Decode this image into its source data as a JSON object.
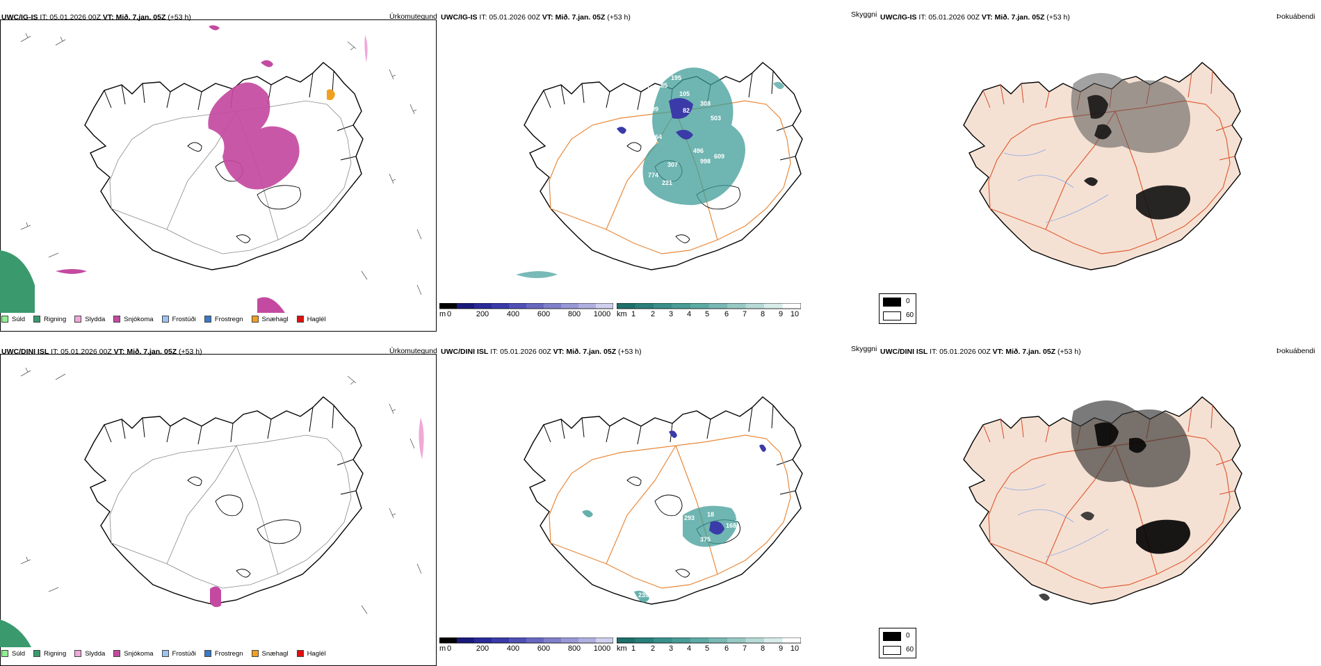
{
  "panels": [
    {
      "id": "p1",
      "title_model": "UWC/IG-IS",
      "title_it": "IT: 05.01.2026 00Z",
      "title_vt": "VT: Mið. 7.jan. 05Z",
      "title_lead": "(+53 h)",
      "type": "Úrkomutegund"
    },
    {
      "id": "p2",
      "title_model": "UWC/IG-IS",
      "title_it": "IT: 05.01.2026 00Z",
      "title_vt": "VT: Mið. 7.jan. 05Z",
      "title_lead": "(+53 h)",
      "type": "Skyggni"
    },
    {
      "id": "p3",
      "title_model": "UWC/IG-IS",
      "title_it": "IT: 05.01.2026 00Z",
      "title_vt": "VT: Mið. 7.jan. 05Z",
      "title_lead": "(+53 h)",
      "type": "Þokuábendi"
    },
    {
      "id": "p4",
      "title_model": "UWC/DINI ISL",
      "title_it": "IT: 05.01.2026 00Z",
      "title_vt": "VT: Mið. 7.jan. 05Z",
      "title_lead": "(+53 h)",
      "type": "Úrkomutegund"
    },
    {
      "id": "p5",
      "title_model": "UWC/DINI ISL",
      "title_it": "IT: 05.01.2026 00Z",
      "title_vt": "VT: Mið. 7.jan. 05Z",
      "title_lead": "(+53 h)",
      "type": "Skyggni"
    },
    {
      "id": "p6",
      "title_model": "UWC/DINI ISL",
      "title_it": "IT: 05.01.2026 00Z",
      "title_vt": "VT: Mið. 7.jan. 05Z",
      "title_lead": "(+53 h)",
      "type": "Þokuábendi"
    }
  ],
  "precip_legend": [
    {
      "label": "Súld",
      "color": "#90ee90"
    },
    {
      "label": "Rigning",
      "color": "#3a9a6e"
    },
    {
      "label": "Slydda",
      "color": "#f0a8d8"
    },
    {
      "label": "Snjókoma",
      "color": "#c34aa0"
    },
    {
      "label": "Frostúði",
      "color": "#9dc4f0"
    },
    {
      "label": "Frostregn",
      "color": "#3a78c8"
    },
    {
      "label": "Snæhagl",
      "color": "#f0a020"
    },
    {
      "label": "Haglél",
      "color": "#e01010"
    }
  ],
  "ceiling_scale": {
    "unit": "m",
    "ticks": [
      "0",
      "200",
      "400",
      "600",
      "800",
      "1000"
    ]
  },
  "visibility_scale": {
    "unit": "km",
    "ticks": [
      "1",
      "2",
      "3",
      "4",
      "5",
      "6",
      "7",
      "8",
      "9",
      "10"
    ]
  },
  "fog_scale": {
    "ticks": [
      "0",
      "60"
    ]
  },
  "ig_ceiling_labels": [
    "195",
    "85",
    "105",
    "192",
    "308",
    "82",
    "199",
    "503",
    "264",
    "496",
    "998",
    "609",
    "117",
    "307",
    "774",
    "221",
    "831",
    "05"
  ],
  "dini_ceiling_labels": [
    "293",
    "18",
    "375",
    "168",
    "239",
    "172"
  ]
}
